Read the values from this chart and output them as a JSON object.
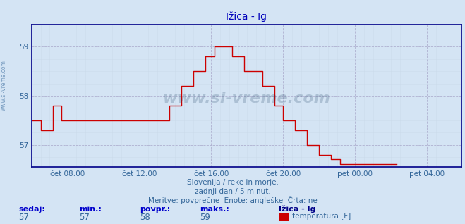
{
  "title": "Ižica - Ig",
  "bg_color": "#d4e4f4",
  "plot_bg_color": "#d4e4f4",
  "line_color": "#cc0000",
  "grid_color_major": "#aaaacc",
  "grid_color_minor": "#c8d8e8",
  "axis_color": "#000088",
  "text_color": "#336699",
  "title_color": "#0000bb",
  "ylim": [
    56.55,
    59.45
  ],
  "yticks": [
    57,
    58,
    59
  ],
  "xlim": [
    0,
    287
  ],
  "xtick_positions": [
    24,
    72,
    120,
    168,
    216,
    264
  ],
  "xtick_labels": [
    "čet 08:00",
    "čet 12:00",
    "čet 16:00",
    "čet 20:00",
    "pet 00:00",
    "pet 04:00"
  ],
  "watermark": "www.si-vreme.com",
  "subtitle1": "Slovenija / reke in morje.",
  "subtitle2": "zadnji dan / 5 minut.",
  "subtitle3": "Meritve: povprečne  Enote: angleške  Črta: ne",
  "legend_label": "temperatura [F]",
  "legend_color": "#cc0000",
  "stats_labels": [
    "sedaj:",
    "min.:",
    "povpr.:",
    "maks.:"
  ],
  "stats_values": [
    "57",
    "57",
    "58",
    "59"
  ],
  "series_label": "Ižica - Ig",
  "data_y": [
    57.5,
    57.5,
    57.5,
    57.5,
    57.5,
    57.5,
    57.3,
    57.3,
    57.3,
    57.3,
    57.3,
    57.3,
    57.3,
    57.3,
    57.8,
    57.8,
    57.8,
    57.8,
    57.8,
    57.8,
    57.5,
    57.5,
    57.5,
    57.5,
    57.5,
    57.5,
    57.5,
    57.5,
    57.5,
    57.5,
    57.5,
    57.5,
    57.5,
    57.5,
    57.5,
    57.5,
    57.5,
    57.5,
    57.5,
    57.5,
    57.5,
    57.5,
    57.5,
    57.5,
    57.5,
    57.5,
    57.5,
    57.5,
    57.5,
    57.5,
    57.5,
    57.5,
    57.5,
    57.5,
    57.5,
    57.5,
    57.5,
    57.5,
    57.5,
    57.5,
    57.5,
    57.5,
    57.5,
    57.5,
    57.5,
    57.5,
    57.5,
    57.5,
    57.5,
    57.5,
    57.5,
    57.5,
    57.5,
    57.5,
    57.5,
    57.5,
    57.5,
    57.5,
    57.5,
    57.5,
    57.5,
    57.5,
    57.5,
    57.5,
    57.5,
    57.5,
    57.5,
    57.5,
    57.5,
    57.5,
    57.5,
    57.5,
    57.8,
    57.8,
    57.8,
    57.8,
    57.8,
    57.8,
    57.8,
    57.8,
    58.2,
    58.2,
    58.2,
    58.2,
    58.2,
    58.2,
    58.2,
    58.2,
    58.5,
    58.5,
    58.5,
    58.5,
    58.5,
    58.5,
    58.5,
    58.5,
    58.8,
    58.8,
    58.8,
    58.8,
    58.8,
    58.8,
    59.0,
    59.0,
    59.0,
    59.0,
    59.0,
    59.0,
    59.0,
    59.0,
    59.0,
    59.0,
    59.0,
    59.0,
    58.8,
    58.8,
    58.8,
    58.8,
    58.8,
    58.8,
    58.8,
    58.8,
    58.5,
    58.5,
    58.5,
    58.5,
    58.5,
    58.5,
    58.5,
    58.5,
    58.5,
    58.5,
    58.5,
    58.5,
    58.2,
    58.2,
    58.2,
    58.2,
    58.2,
    58.2,
    58.2,
    58.2,
    57.8,
    57.8,
    57.8,
    57.8,
    57.8,
    57.8,
    57.5,
    57.5,
    57.5,
    57.5,
    57.5,
    57.5,
    57.5,
    57.5,
    57.3,
    57.3,
    57.3,
    57.3,
    57.3,
    57.3,
    57.3,
    57.3,
    57.0,
    57.0,
    57.0,
    57.0,
    57.0,
    57.0,
    57.0,
    57.0,
    56.8,
    56.8,
    56.8,
    56.8,
    56.8,
    56.8,
    56.8,
    56.8,
    56.7,
    56.7,
    56.7,
    56.7,
    56.7,
    56.7,
    56.6,
    56.6,
    56.6,
    56.6,
    56.6,
    56.6,
    56.6,
    56.6,
    56.6,
    56.6,
    56.6,
    56.6,
    56.6,
    56.6,
    56.6,
    56.6,
    56.6,
    56.6,
    56.6,
    56.6,
    56.6,
    56.6,
    56.6,
    56.6,
    56.6,
    56.6,
    56.6,
    56.6,
    56.6,
    56.6,
    56.6,
    56.6,
    56.6,
    56.6,
    56.6,
    56.6,
    56.6,
    56.6,
    56.6
  ]
}
